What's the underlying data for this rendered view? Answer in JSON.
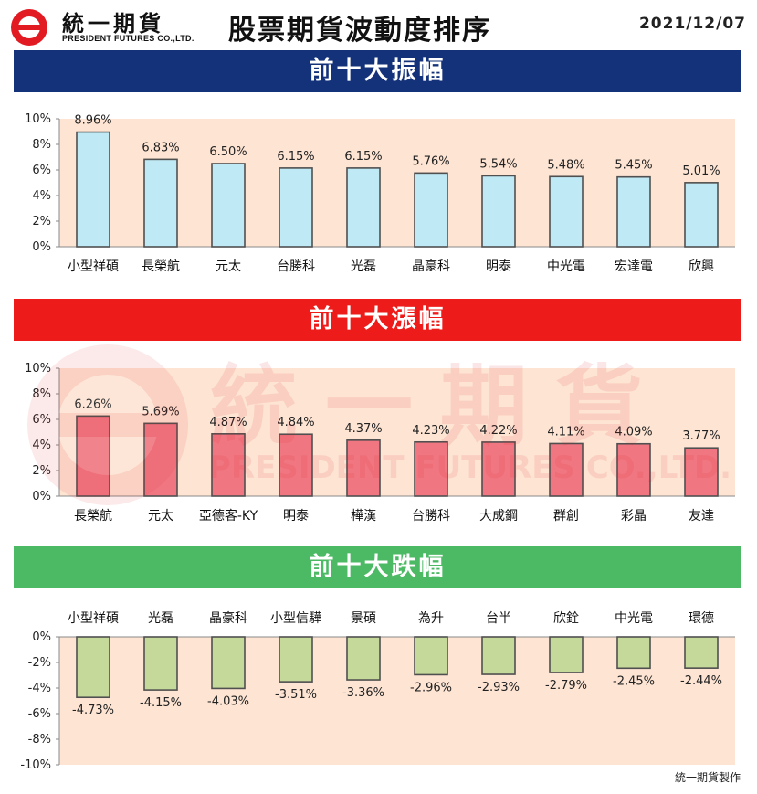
{
  "header": {
    "brand_cn": "統一期貨",
    "brand_en": "PRESIDENT FUTURES CO.,LTD.",
    "title": "股票期貨波動度排序",
    "date": "2021/12/07"
  },
  "watermark": {
    "cn": "統一期貨",
    "en": "PRESIDENT FUTURES CO.,LTD."
  },
  "footer": {
    "note": "統一期貨製作"
  },
  "colors": {
    "navy": "#14327a",
    "red": "#ee1b1b",
    "green": "#4cba65",
    "plot_bg": "#fde4d3",
    "bar_blue": "#bfe9f5",
    "bar_red": "#f07782",
    "bar_green": "#c5d99a"
  },
  "chart_data": [
    {
      "type": "bar",
      "title": "前十大振幅",
      "categories": [
        "小型祥碩",
        "長榮航",
        "元太",
        "台勝科",
        "光磊",
        "晶豪科",
        "明泰",
        "中光電",
        "宏達電",
        "欣興"
      ],
      "values": [
        8.96,
        6.83,
        6.5,
        6.15,
        6.15,
        5.76,
        5.54,
        5.48,
        5.45,
        5.01
      ],
      "data_labels": [
        "8.96%",
        "6.83%",
        "6.50%",
        "6.15%",
        "6.15%",
        "5.76%",
        "5.54%",
        "5.48%",
        "5.45%",
        "5.01%"
      ],
      "yticks": [
        "0%",
        "2%",
        "4%",
        "6%",
        "8%",
        "10%"
      ],
      "ylim": [
        0,
        10
      ],
      "grid": false,
      "legend": "none"
    },
    {
      "type": "bar",
      "title": "前十大漲幅",
      "categories": [
        "長榮航",
        "元太",
        "亞德客-KY",
        "明泰",
        "樺漢",
        "台勝科",
        "大成鋼",
        "群創",
        "彩晶",
        "友達"
      ],
      "values": [
        6.26,
        5.69,
        4.87,
        4.84,
        4.37,
        4.23,
        4.22,
        4.11,
        4.09,
        3.77
      ],
      "data_labels": [
        "6.26%",
        "5.69%",
        "4.87%",
        "4.84%",
        "4.37%",
        "4.23%",
        "4.22%",
        "4.11%",
        "4.09%",
        "3.77%"
      ],
      "yticks": [
        "0%",
        "2%",
        "4%",
        "6%",
        "8%",
        "10%"
      ],
      "ylim": [
        0,
        10
      ],
      "grid": false,
      "legend": "none"
    },
    {
      "type": "bar",
      "title": "前十大跌幅",
      "categories": [
        "小型祥碩",
        "光磊",
        "晶豪科",
        "小型信驊",
        "景碩",
        "為升",
        "台半",
        "欣銓",
        "中光電",
        "環德"
      ],
      "values": [
        -4.73,
        -4.15,
        -4.03,
        -3.51,
        -3.36,
        -2.96,
        -2.93,
        -2.79,
        -2.45,
        -2.44
      ],
      "data_labels": [
        "-4.73%",
        "-4.15%",
        "-4.03%",
        "-3.51%",
        "-3.36%",
        "-2.96%",
        "-2.93%",
        "-2.79%",
        "-2.45%",
        "-2.44%"
      ],
      "yticks": [
        "0%",
        "-2%",
        "-4%",
        "-6%",
        "-8%",
        "-10%"
      ],
      "ylim": [
        -10,
        0
      ],
      "grid": false,
      "legend": "none"
    }
  ]
}
